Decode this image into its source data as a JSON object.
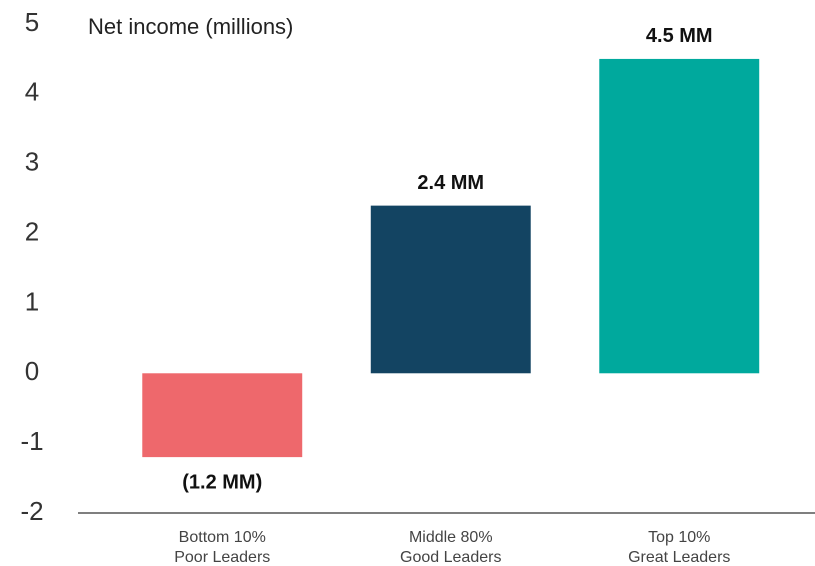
{
  "chart_data": {
    "type": "bar",
    "y_axis_label": "Net income (millions)",
    "categories": [
      [
        "Bottom 10%",
        "Poor Leaders"
      ],
      [
        "Middle 80%",
        "Good Leaders"
      ],
      [
        "Top 10%",
        "Great Leaders"
      ]
    ],
    "values": [
      -1.2,
      2.4,
      4.5
    ],
    "value_labels": [
      "(1.2 MM)",
      "2.4 MM",
      "4.5 MM"
    ],
    "colors": [
      "#ee686c",
      "#134462",
      "#00a99d"
    ],
    "ylim": [
      -2,
      5
    ],
    "yticks": [
      -2,
      -1,
      0,
      1,
      2,
      3,
      4,
      5
    ],
    "grid": false
  }
}
